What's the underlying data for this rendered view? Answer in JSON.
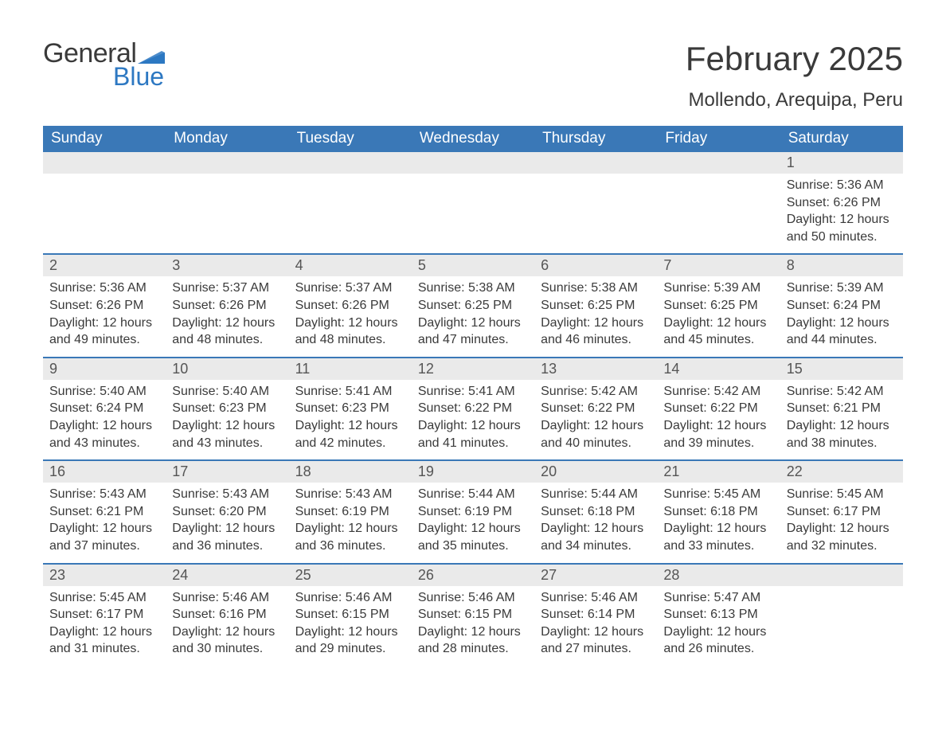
{
  "logo": {
    "word1": "General",
    "word2": "Blue",
    "word1_color": "#3a3a3a",
    "word2_color": "#2d78c2",
    "flag_color": "#2d78c2"
  },
  "title": {
    "month_year": "February 2025",
    "location": "Mollendo, Arequipa, Peru",
    "title_fontsize": 42,
    "location_fontsize": 24,
    "text_color": "#3a3a3a"
  },
  "calendar": {
    "header_bg": "#3a78b7",
    "header_text_color": "#ffffff",
    "daynum_bg": "#eaeaea",
    "week_divider_color": "#3a78b7",
    "body_text_color": "#3a3a3a",
    "day_labels": [
      "Sunday",
      "Monday",
      "Tuesday",
      "Wednesday",
      "Thursday",
      "Friday",
      "Saturday"
    ],
    "first_weekday_index": 6,
    "num_days": 28,
    "days": {
      "1": {
        "sunrise": "5:36 AM",
        "sunset": "6:26 PM",
        "daylight": "12 hours and 50 minutes."
      },
      "2": {
        "sunrise": "5:36 AM",
        "sunset": "6:26 PM",
        "daylight": "12 hours and 49 minutes."
      },
      "3": {
        "sunrise": "5:37 AM",
        "sunset": "6:26 PM",
        "daylight": "12 hours and 48 minutes."
      },
      "4": {
        "sunrise": "5:37 AM",
        "sunset": "6:26 PM",
        "daylight": "12 hours and 48 minutes."
      },
      "5": {
        "sunrise": "5:38 AM",
        "sunset": "6:25 PM",
        "daylight": "12 hours and 47 minutes."
      },
      "6": {
        "sunrise": "5:38 AM",
        "sunset": "6:25 PM",
        "daylight": "12 hours and 46 minutes."
      },
      "7": {
        "sunrise": "5:39 AM",
        "sunset": "6:25 PM",
        "daylight": "12 hours and 45 minutes."
      },
      "8": {
        "sunrise": "5:39 AM",
        "sunset": "6:24 PM",
        "daylight": "12 hours and 44 minutes."
      },
      "9": {
        "sunrise": "5:40 AM",
        "sunset": "6:24 PM",
        "daylight": "12 hours and 43 minutes."
      },
      "10": {
        "sunrise": "5:40 AM",
        "sunset": "6:23 PM",
        "daylight": "12 hours and 43 minutes."
      },
      "11": {
        "sunrise": "5:41 AM",
        "sunset": "6:23 PM",
        "daylight": "12 hours and 42 minutes."
      },
      "12": {
        "sunrise": "5:41 AM",
        "sunset": "6:22 PM",
        "daylight": "12 hours and 41 minutes."
      },
      "13": {
        "sunrise": "5:42 AM",
        "sunset": "6:22 PM",
        "daylight": "12 hours and 40 minutes."
      },
      "14": {
        "sunrise": "5:42 AM",
        "sunset": "6:22 PM",
        "daylight": "12 hours and 39 minutes."
      },
      "15": {
        "sunrise": "5:42 AM",
        "sunset": "6:21 PM",
        "daylight": "12 hours and 38 minutes."
      },
      "16": {
        "sunrise": "5:43 AM",
        "sunset": "6:21 PM",
        "daylight": "12 hours and 37 minutes."
      },
      "17": {
        "sunrise": "5:43 AM",
        "sunset": "6:20 PM",
        "daylight": "12 hours and 36 minutes."
      },
      "18": {
        "sunrise": "5:43 AM",
        "sunset": "6:19 PM",
        "daylight": "12 hours and 36 minutes."
      },
      "19": {
        "sunrise": "5:44 AM",
        "sunset": "6:19 PM",
        "daylight": "12 hours and 35 minutes."
      },
      "20": {
        "sunrise": "5:44 AM",
        "sunset": "6:18 PM",
        "daylight": "12 hours and 34 minutes."
      },
      "21": {
        "sunrise": "5:45 AM",
        "sunset": "6:18 PM",
        "daylight": "12 hours and 33 minutes."
      },
      "22": {
        "sunrise": "5:45 AM",
        "sunset": "6:17 PM",
        "daylight": "12 hours and 32 minutes."
      },
      "23": {
        "sunrise": "5:45 AM",
        "sunset": "6:17 PM",
        "daylight": "12 hours and 31 minutes."
      },
      "24": {
        "sunrise": "5:46 AM",
        "sunset": "6:16 PM",
        "daylight": "12 hours and 30 minutes."
      },
      "25": {
        "sunrise": "5:46 AM",
        "sunset": "6:15 PM",
        "daylight": "12 hours and 29 minutes."
      },
      "26": {
        "sunrise": "5:46 AM",
        "sunset": "6:15 PM",
        "daylight": "12 hours and 28 minutes."
      },
      "27": {
        "sunrise": "5:46 AM",
        "sunset": "6:14 PM",
        "daylight": "12 hours and 27 minutes."
      },
      "28": {
        "sunrise": "5:47 AM",
        "sunset": "6:13 PM",
        "daylight": "12 hours and 26 minutes."
      }
    },
    "labels": {
      "sunrise": "Sunrise: ",
      "sunset": "Sunset: ",
      "daylight": "Daylight: "
    }
  }
}
